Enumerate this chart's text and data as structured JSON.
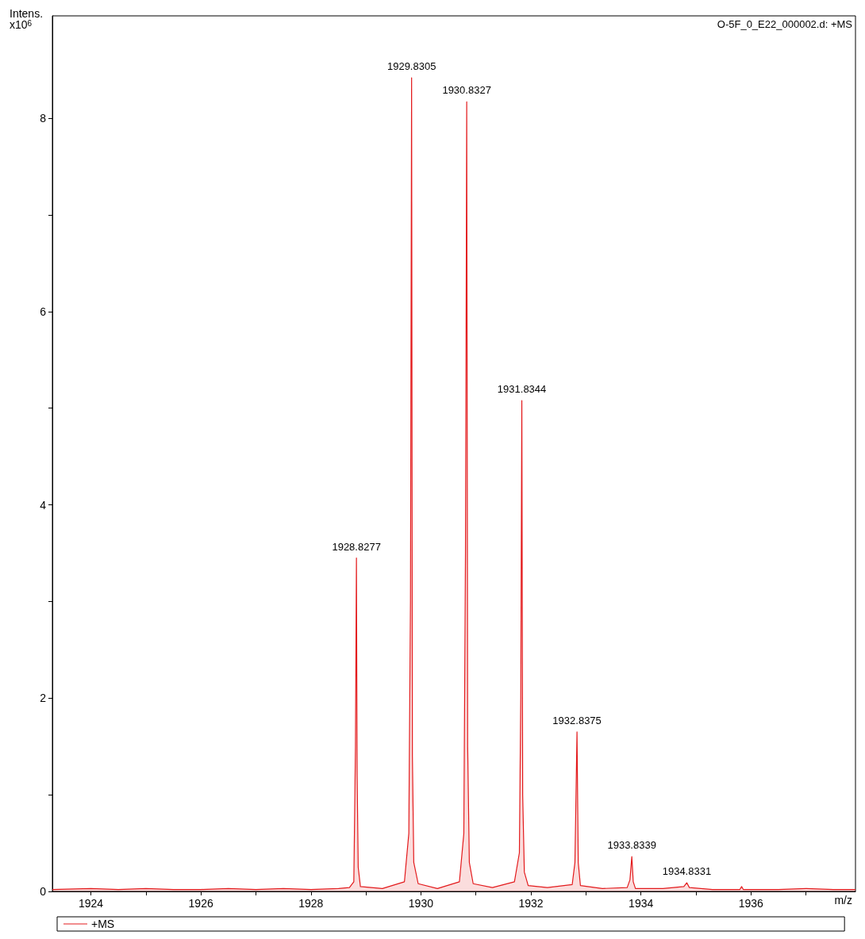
{
  "chart_data": {
    "type": "area",
    "xlabel": "m/z",
    "ylabel": "Intens. x10$^{6}$",
    "annotations": [
      "O-5F_0_E22_000002.d: +MS",
      {
        "text": "1928.8277",
        "x": 1928.8277,
        "y": 3.45
      },
      {
        "text": "1929.8305",
        "x": 1929.8305,
        "y": 8.42
      },
      {
        "text": "1930.8327",
        "x": 1930.8327,
        "y": 8.17
      },
      {
        "text": "1931.8344",
        "x": 1931.8344,
        "y": 5.08
      },
      {
        "text": "1932.8375",
        "x": 1932.8375,
        "y": 1.65
      },
      {
        "text": "1933.8339",
        "x": 1933.8339,
        "y": 0.36
      },
      {
        "text": "1934.8331",
        "x": 1934.8331,
        "y": 0.09
      }
    ],
    "series": [
      {
        "name": "+MS",
        "color": "#e31a1c",
        "x": [
          1923.3,
          1924.0,
          1924.5,
          1925.0,
          1925.5,
          1926.0,
          1926.5,
          1927.0,
          1927.5,
          1928.0,
          1928.5,
          1928.7,
          1928.78,
          1928.81,
          1928.8277,
          1928.84,
          1928.86,
          1928.9,
          1929.3,
          1929.7,
          1929.78,
          1929.81,
          1929.8305,
          1929.845,
          1929.87,
          1929.95,
          1930.3,
          1930.7,
          1930.78,
          1930.81,
          1930.8327,
          1930.85,
          1930.88,
          1930.95,
          1931.3,
          1931.7,
          1931.79,
          1931.815,
          1931.8344,
          1931.85,
          1931.88,
          1931.95,
          1932.3,
          1932.75,
          1932.8,
          1932.8375,
          1932.86,
          1932.9,
          1933.3,
          1933.75,
          1933.8,
          1933.8339,
          1933.86,
          1933.9,
          1934.4,
          1934.78,
          1934.8331,
          1934.88,
          1935.3,
          1935.8,
          1935.83,
          1935.86,
          1936.5,
          1937.0,
          1937.5,
          1937.9
        ],
        "values": [
          0.02,
          0.03,
          0.02,
          0.03,
          0.02,
          0.02,
          0.03,
          0.02,
          0.03,
          0.02,
          0.03,
          0.04,
          0.1,
          1.5,
          3.45,
          1.2,
          0.25,
          0.05,
          0.03,
          0.1,
          0.6,
          3.0,
          8.42,
          1.4,
          0.3,
          0.08,
          0.03,
          0.1,
          0.6,
          3.5,
          8.17,
          1.5,
          0.3,
          0.08,
          0.04,
          0.1,
          0.4,
          2.0,
          5.08,
          1.0,
          0.2,
          0.06,
          0.04,
          0.07,
          0.3,
          1.65,
          0.3,
          0.06,
          0.03,
          0.04,
          0.12,
          0.36,
          0.1,
          0.03,
          0.03,
          0.05,
          0.09,
          0.04,
          0.02,
          0.02,
          0.05,
          0.02,
          0.02,
          0.03,
          0.02,
          0.02
        ]
      }
    ],
    "xlim": [
      1923.3,
      1937.9
    ],
    "xticks": [
      1924,
      {
        "value": 1925,
        "label": null
      },
      1926,
      {
        "value": 1927,
        "label": null
      },
      1928,
      {
        "value": 1929,
        "label": null
      },
      1930,
      {
        "value": 1931,
        "label": null
      },
      1932,
      {
        "value": 1933,
        "label": null
      },
      1934,
      {
        "value": 1935,
        "label": null
      },
      1936,
      {
        "value": 1937,
        "label": null
      }
    ],
    "ylim": [
      0,
      9.06
    ],
    "yticks": [
      0,
      {
        "value": 1,
        "label": null
      },
      2,
      {
        "value": 3,
        "label": null
      },
      4,
      {
        "value": 5,
        "label": null
      },
      6,
      {
        "value": 7,
        "label": null
      },
      8
    ],
    "grid": false,
    "legend": "bottom",
    "marker": "none",
    "line_style": "solid"
  }
}
